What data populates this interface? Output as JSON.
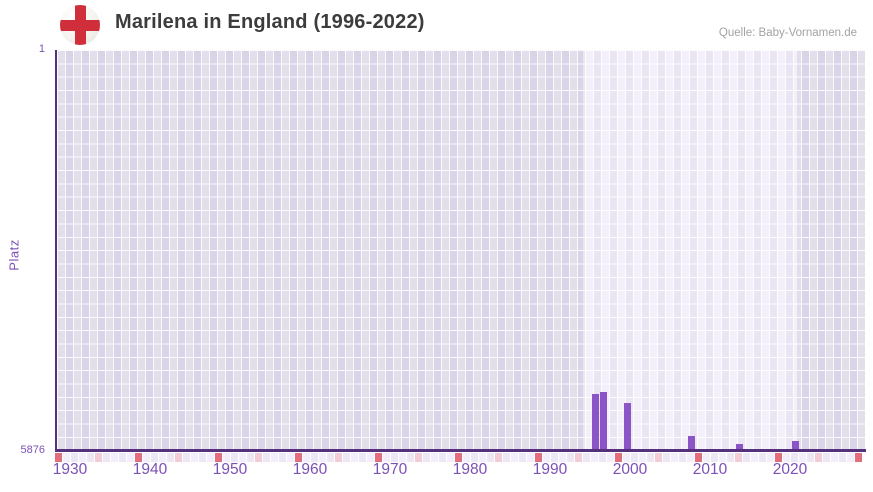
{
  "header": {
    "title": "Marilena in England (1996-2022)",
    "source": "Quelle: Baby-Vornamen.de",
    "flag_icon": "england-flag-icon"
  },
  "chart_data": {
    "type": "bar",
    "title": "Marilena in England (1996-2022)",
    "ylabel": "Platz",
    "y_axis": {
      "top_label": "1",
      "bottom_label": "5876",
      "min": 1,
      "max": 5876,
      "inverted": true
    },
    "x_tick_labels": [
      "1930",
      "1940",
      "1950",
      "1960",
      "1970",
      "1980",
      "1990",
      "2000",
      "2010",
      "2020"
    ],
    "series": [
      {
        "name": "Platz",
        "points": [
          {
            "year": 1996,
            "platz": 5058
          },
          {
            "year": 1997,
            "platz": 5020
          },
          {
            "year": 2000,
            "platz": 5186
          },
          {
            "year": 2008,
            "platz": 5664
          },
          {
            "year": 2014,
            "platz": 5788
          },
          {
            "year": 2021,
            "platz": 5744
          }
        ]
      }
    ],
    "legend": null,
    "grid": true,
    "colors": {
      "bar": "#8b55c8",
      "axis_line": "#55307d",
      "axis_label": "#7c51b5",
      "tick_dark_pink": "#e06e7d",
      "tick_light_pink": "#f2cdd6",
      "tick_default_a": "#ece7f5",
      "tick_default_b": "#f2eefa",
      "flag_red": "#cf2e3a",
      "title_text": "#3c3c3c",
      "source_text": "#a3a3a3"
    }
  }
}
